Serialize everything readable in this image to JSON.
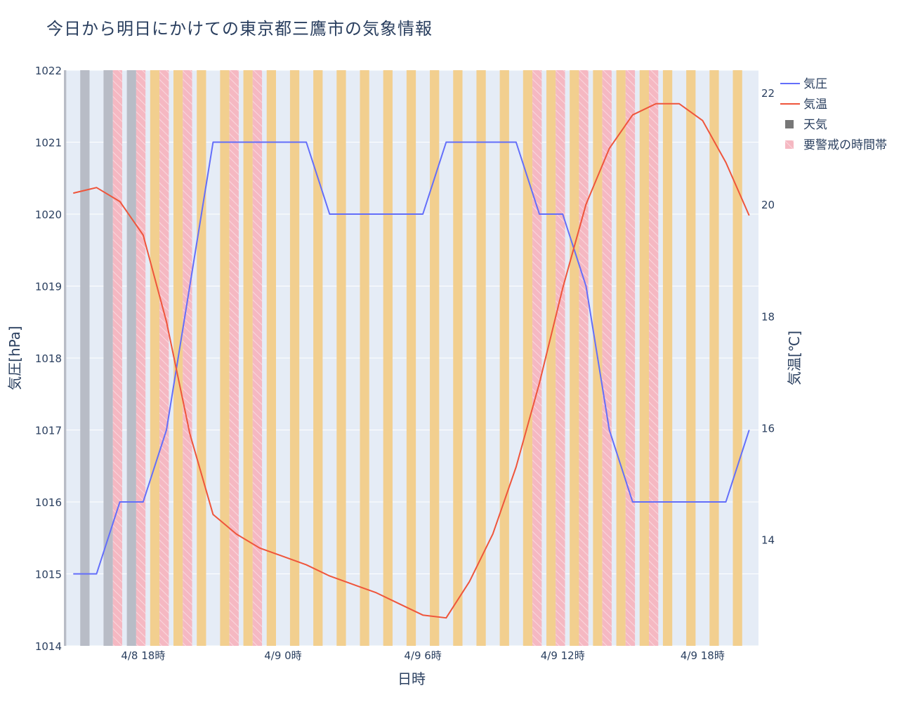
{
  "chart_data": {
    "type": "line",
    "title": "今日から明日にかけての東京都三鷹市の気象情報",
    "xlabel": "日時",
    "y_left_label": "気圧[hPa]",
    "y_right_label": "気温[℃]",
    "y_left_range": [
      1014,
      1022
    ],
    "y_left_ticks": [
      "1014",
      "1015",
      "1016",
      "1017",
      "1018",
      "1019",
      "1020",
      "1021",
      "1022"
    ],
    "y_right_range": [
      12.1,
      22.4
    ],
    "y_right_ticks": [
      "14",
      "16",
      "18",
      "20",
      "22"
    ],
    "x_start_hour": 14.6,
    "x_end_hour": 44.4,
    "x_ticks": [
      {
        "hour": 18,
        "label": "4/8 18時"
      },
      {
        "hour": 24,
        "label": "4/9 0時"
      },
      {
        "hour": 30,
        "label": "4/9 6時"
      },
      {
        "hour": 36,
        "label": "4/9 12時"
      },
      {
        "hour": 42,
        "label": "4/9 18時"
      }
    ],
    "hours": [
      15,
      16,
      17,
      18,
      19,
      20,
      21,
      22,
      23,
      24,
      25,
      26,
      27,
      28,
      29,
      30,
      31,
      32,
      33,
      34,
      35,
      36,
      37,
      38,
      39,
      40,
      41,
      42,
      43,
      44
    ],
    "series": [
      {
        "name": "気圧",
        "axis": "left",
        "color": "#636efa",
        "values": [
          1015,
          1015,
          1016,
          1016,
          1017,
          1019,
          1021,
          1021,
          1021,
          1021,
          1021,
          1020,
          1020,
          1020,
          1020,
          1020,
          1021,
          1021,
          1021,
          1021,
          1020,
          1020,
          1019,
          1017,
          1016,
          1016,
          1016,
          1016,
          1016,
          1017
        ]
      },
      {
        "name": "気温",
        "axis": "right",
        "color": "#ef553b",
        "values": [
          20.2,
          20.3,
          20.05,
          19.45,
          17.9,
          15.9,
          14.45,
          14.1,
          13.85,
          13.7,
          13.55,
          13.35,
          13.2,
          13.05,
          12.85,
          12.65,
          12.6,
          13.25,
          14.1,
          15.3,
          16.8,
          18.5,
          20.0,
          21.0,
          21.6,
          21.8,
          21.8,
          21.5,
          20.75,
          19.8
        ]
      }
    ],
    "weather_bars": {
      "name": "天気",
      "legend_color": "#777777",
      "colors": {
        "cloudy": "#b8bcc6",
        "sunny": "#f2cf8f"
      },
      "hours": [
        15,
        16,
        17,
        18,
        19,
        20,
        21,
        22,
        23,
        24,
        25,
        26,
        27,
        28,
        29,
        30,
        31,
        32,
        33,
        34,
        35,
        36,
        37,
        38,
        39,
        40,
        41,
        42,
        43,
        44
      ],
      "kinds": [
        "cloudy",
        "cloudy",
        "cloudy",
        "cloudy",
        "sunny",
        "sunny",
        "sunny",
        "sunny",
        "sunny",
        "sunny",
        "sunny",
        "sunny",
        "sunny",
        "sunny",
        "sunny",
        "sunny",
        "sunny",
        "sunny",
        "sunny",
        "sunny",
        "sunny",
        "sunny",
        "sunny",
        "sunny",
        "sunny",
        "sunny",
        "sunny",
        "sunny",
        "sunny",
        "sunny"
      ]
    },
    "alert_bars": {
      "name": "要警戒の時間帯",
      "color": "#f5b8c2",
      "hours": [
        17,
        18,
        19,
        20,
        22,
        23,
        35,
        36,
        37,
        38,
        39,
        40
      ]
    },
    "legend_position": "top-right"
  }
}
